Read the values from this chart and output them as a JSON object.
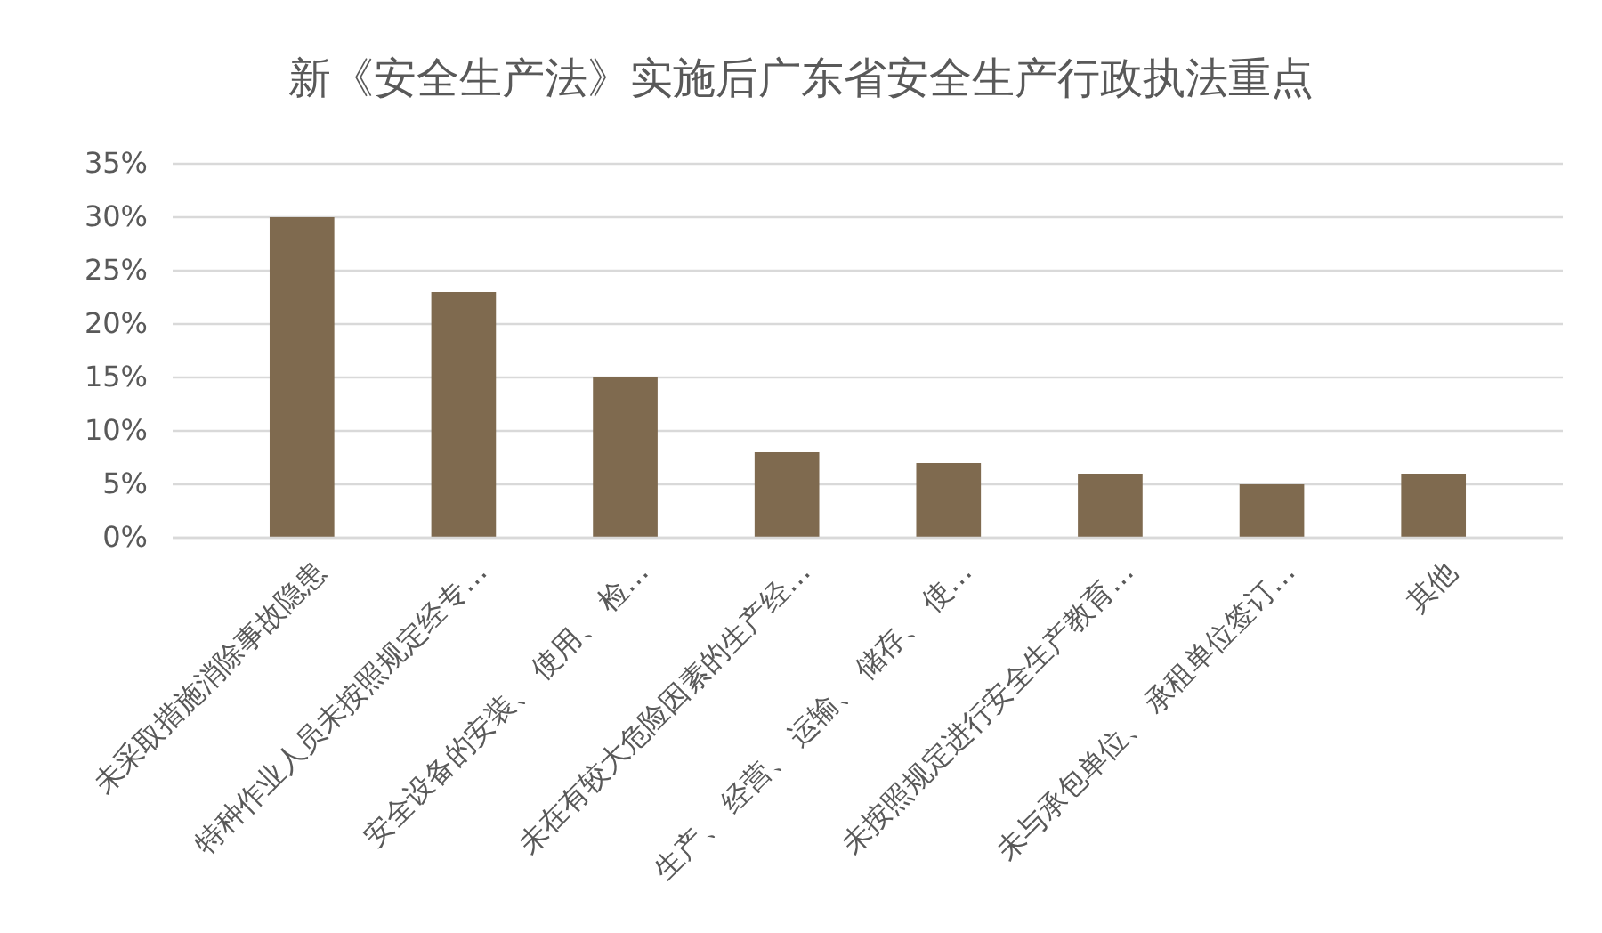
{
  "chart_data": {
    "type": "bar",
    "title": "新《安全生产法》实施后广东省安全生产行政执法重点",
    "categories": [
      "未采取措施消除事故隐患",
      "特种作业人员未按照规定经专…",
      "安全设备的安装、 使用、 检…",
      "未在有较大危险因素的生产经…",
      "生产、 经营、 运输、 储存、 使…",
      "未按照规定进行安全生产教育…",
      "未与承包单位、 承租单位签订…",
      "其他"
    ],
    "values": [
      30,
      23,
      15,
      8,
      7,
      6,
      5,
      6
    ],
    "color": "#7f6a4f",
    "ylim": [
      0,
      35
    ],
    "yticks": [
      {
        "value": 0,
        "label": "0%"
      },
      {
        "value": 5,
        "label": "5%"
      },
      {
        "value": 10,
        "label": "10%"
      },
      {
        "value": 15,
        "label": "15%"
      },
      {
        "value": 20,
        "label": "20%"
      },
      {
        "value": 25,
        "label": "25%"
      },
      {
        "value": 30,
        "label": "30%"
      },
      {
        "value": 35,
        "label": "35%"
      }
    ],
    "grid": "y"
  }
}
